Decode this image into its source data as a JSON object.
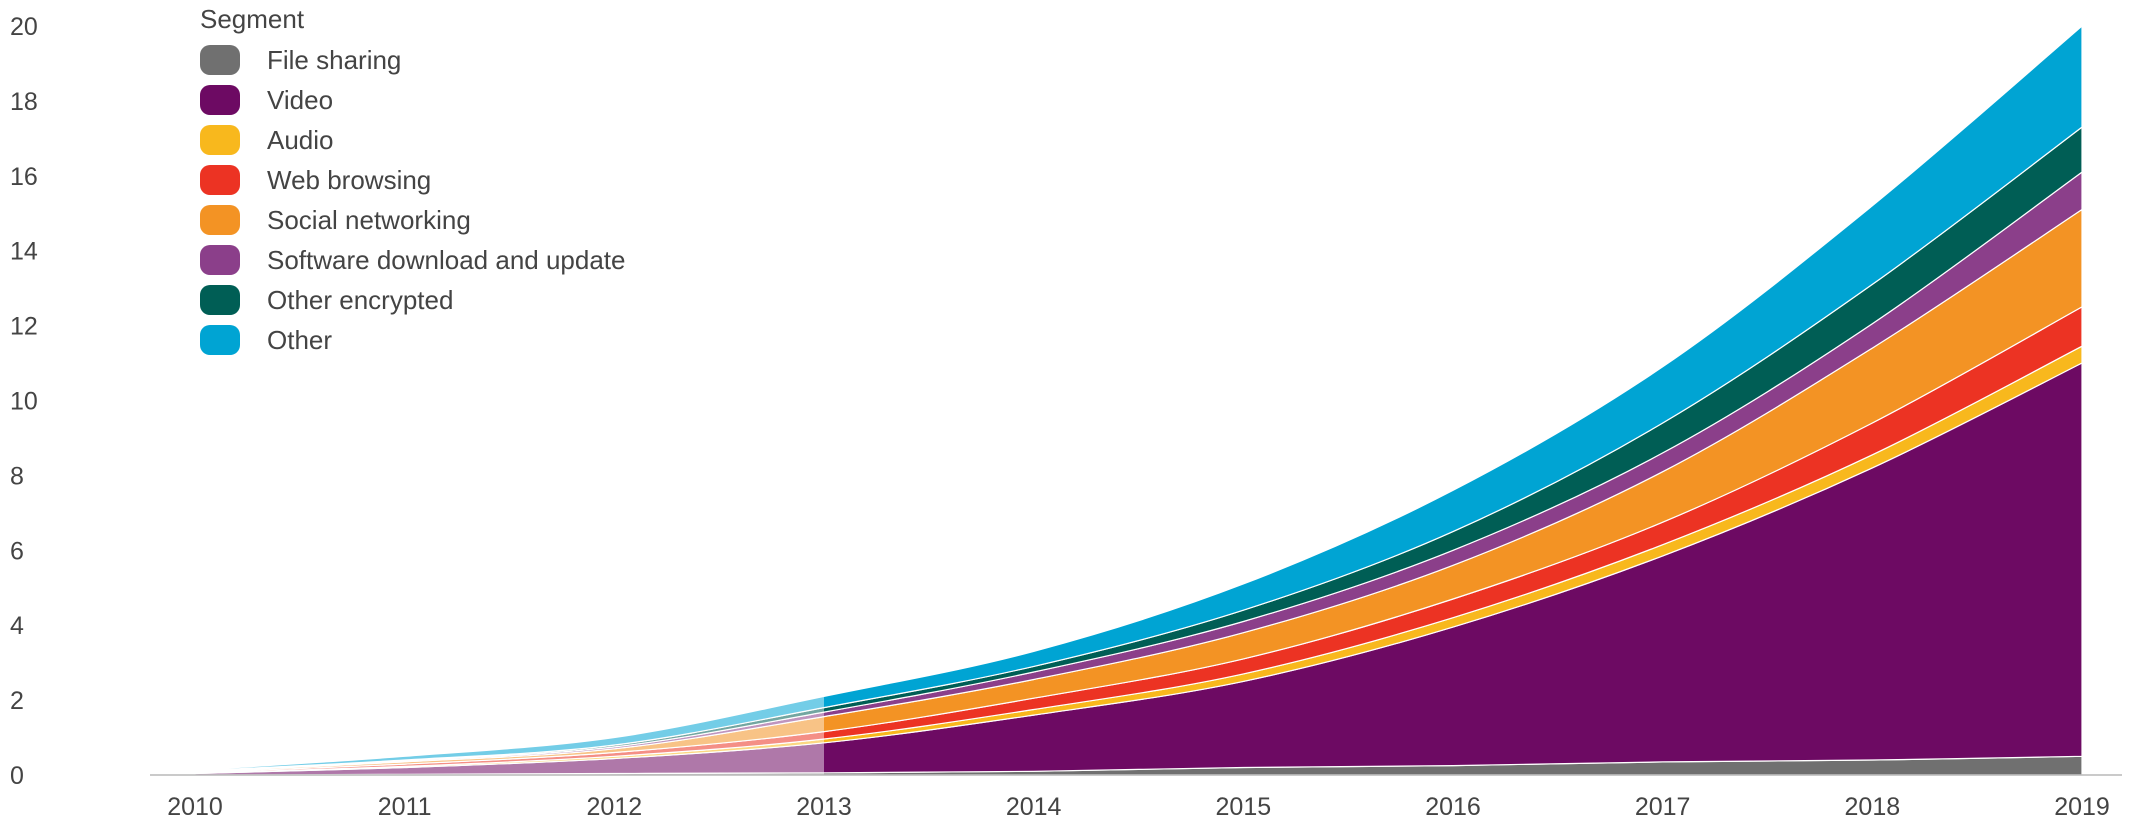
{
  "chart_data": {
    "type": "area",
    "stacked": true,
    "x": [
      "2010",
      "2011",
      "2012",
      "2013",
      "2014",
      "2015",
      "2016",
      "2017",
      "2018",
      "2019"
    ],
    "ylim": [
      0,
      20
    ],
    "yticks": [
      0,
      2,
      4,
      6,
      8,
      10,
      12,
      14,
      16,
      18,
      20
    ],
    "legend_title": "Segment",
    "legend_position": "top-left",
    "faded_until": "2013",
    "series": [
      {
        "name": "File sharing",
        "color": "#707070",
        "values": [
          0.0,
          0.02,
          0.04,
          0.06,
          0.1,
          0.2,
          0.25,
          0.35,
          0.4,
          0.5
        ]
      },
      {
        "name": "Video",
        "color": "#6d0a63",
        "values": [
          0.04,
          0.18,
          0.4,
          0.8,
          1.5,
          2.3,
          3.7,
          5.5,
          7.8,
          10.5
        ]
      },
      {
        "name": "Audio",
        "color": "#f8b81d",
        "values": [
          0.01,
          0.03,
          0.06,
          0.1,
          0.15,
          0.2,
          0.25,
          0.3,
          0.35,
          0.45
        ]
      },
      {
        "name": "Web browsing",
        "color": "#ec3323",
        "values": [
          0.02,
          0.06,
          0.1,
          0.2,
          0.3,
          0.4,
          0.5,
          0.6,
          0.85,
          1.05
        ]
      },
      {
        "name": "Social networking",
        "color": "#f39324",
        "values": [
          0.02,
          0.06,
          0.1,
          0.4,
          0.5,
          0.7,
          0.9,
          1.35,
          2.0,
          2.6
        ]
      },
      {
        "name": "Software download and update",
        "color": "#8b3f8a",
        "values": [
          0.01,
          0.03,
          0.05,
          0.12,
          0.2,
          0.3,
          0.4,
          0.5,
          0.65,
          1.0
        ]
      },
      {
        "name": "Other encrypted",
        "color": "#005e55",
        "values": [
          0.01,
          0.02,
          0.05,
          0.12,
          0.15,
          0.3,
          0.5,
          0.8,
          1.05,
          1.2
        ]
      },
      {
        "name": "Other",
        "color": "#00a4d3",
        "values": [
          0.02,
          0.1,
          0.2,
          0.3,
          0.4,
          0.7,
          1.1,
          1.5,
          2.1,
          2.7
        ]
      }
    ]
  }
}
